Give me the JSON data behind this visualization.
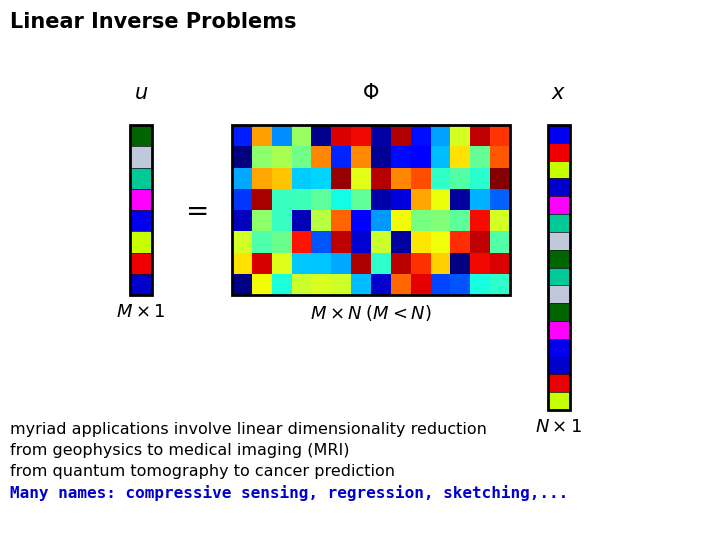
{
  "title": "Linear Inverse Problems",
  "u_colors": [
    "#006400",
    "#c0c8dc",
    "#00c896",
    "#ff00ff",
    "#0000ee",
    "#c8ff00",
    "#ee0000",
    "#0000cc"
  ],
  "x_colors": [
    "#0000ee",
    "#ee0000",
    "#c8ff00",
    "#0000cc",
    "#ff00ff",
    "#00c896",
    "#c0c8dc",
    "#006400",
    "#00c896",
    "#c0c8dc",
    "#006400",
    "#ff00ff",
    "#0000ee",
    "#0000cc",
    "#ee0000",
    "#c8ff00"
  ],
  "matrix_rows": 8,
  "matrix_cols": 14,
  "text_line1": "myriad applications involve linear dimensionality reduction",
  "text_line2": "from geophysics to medical imaging (MRI)",
  "text_line3": "from quantum tomography to cancer prediction",
  "text_line4": "Many names: compressive sensing, regression, sketching,...",
  "text_color1": "#000000",
  "text_color4": "#0000cc",
  "bg_color": "#ffffff"
}
